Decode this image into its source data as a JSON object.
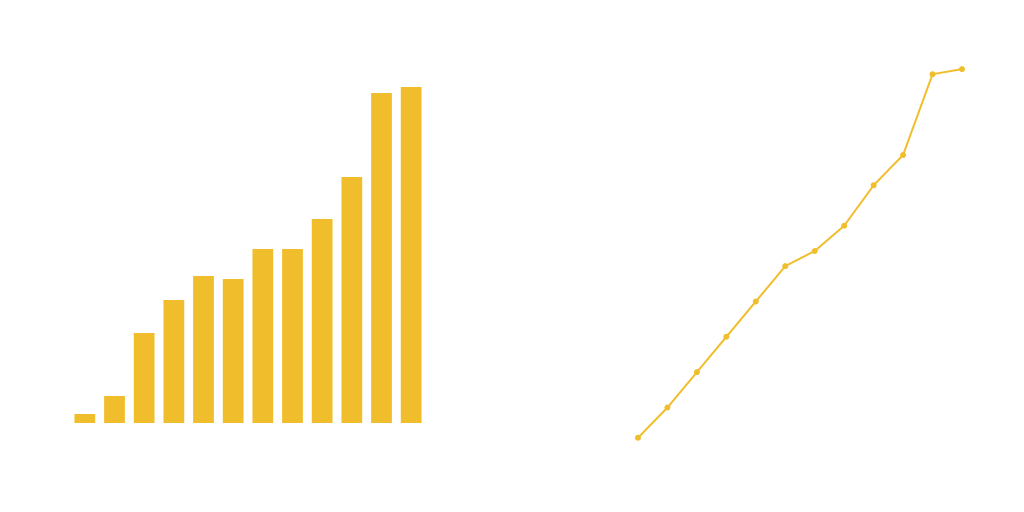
{
  "chart_data": [
    {
      "type": "bar",
      "color": "#F0BE2C",
      "values": [
        1.5,
        4.5,
        15,
        20.5,
        24.5,
        24,
        29,
        29,
        34,
        41,
        55,
        56
      ],
      "ylim": [
        0,
        60
      ],
      "grid": false,
      "legend": "none"
    },
    {
      "type": "line",
      "color": "#F0BE2C",
      "markers": true,
      "values": [
        4,
        10,
        17,
        24,
        31,
        38,
        41,
        46,
        54,
        60,
        76,
        77
      ],
      "ylim": [
        0,
        80
      ],
      "grid": false,
      "legend": "none"
    }
  ]
}
